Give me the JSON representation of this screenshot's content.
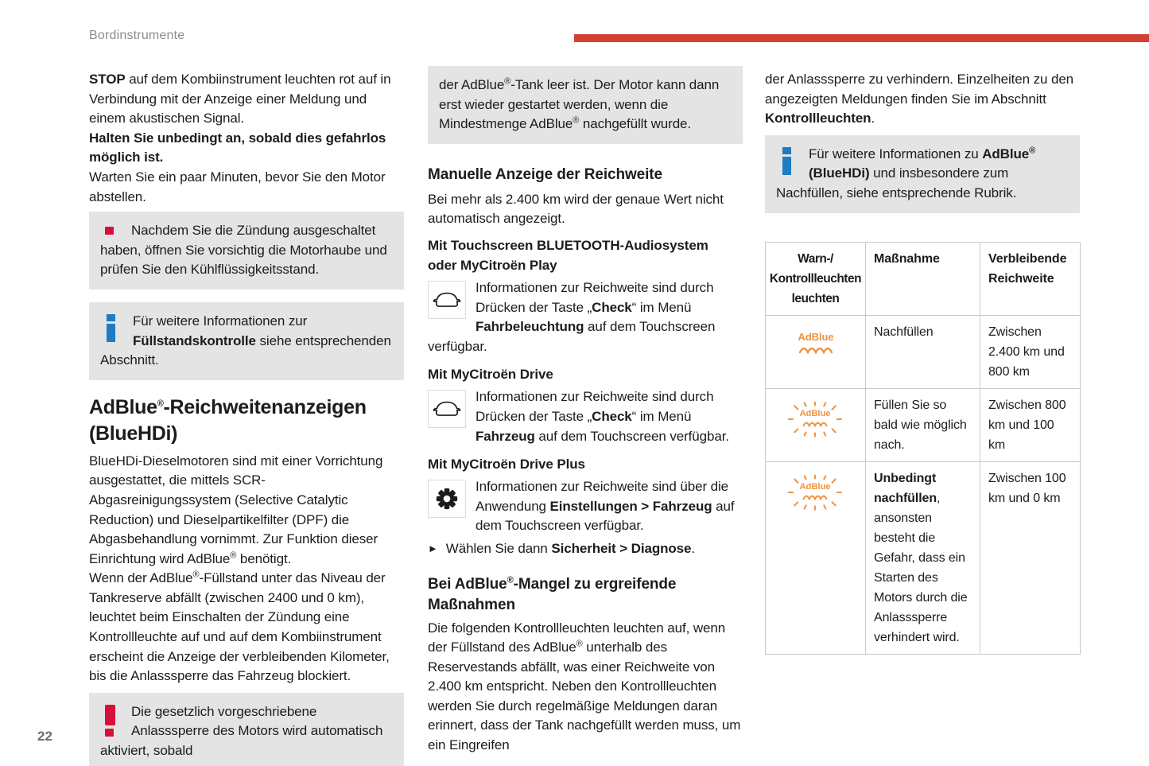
{
  "page": {
    "header_title": "Bordinstrumente",
    "page_number": "22",
    "accent_bar_color": "#d24033",
    "warning_red": "#d6103c",
    "info_blue": "#1d7cc4",
    "adblue_orange": "#ef9440",
    "graybox_color": "#e4e4e4"
  },
  "icons": {
    "warning_icon": "exclamation-mark",
    "info_icon": "i",
    "car_icon": "car-front-outline",
    "gear_icon": "gear",
    "bullet_icon": "►",
    "adblue_steady_icon": "AdBlue with wave",
    "adblue_blinking_icon": "AdBlue with wave and rays"
  },
  "col1": {
    "p1": [
      {
        "t": "STOP",
        "b": true
      },
      {
        "t": " auf dem Kombiinstrument leuchten rot auf in Verbindung mit der Anzeige einer Meldung und einem akustischen Signal."
      }
    ],
    "p2": [
      {
        "t": "Halten Sie unbedingt an, sobald dies gefahrlos möglich ist.",
        "b": true
      }
    ],
    "p3": [
      {
        "t": "Warten Sie ein paar Minuten, bevor Sie den Motor abstellen."
      }
    ],
    "warn1": [
      {
        "t": "Nachdem Sie die Zündung ausgeschaltet haben, öffnen Sie vorsichtig die Motorhaube und prüfen Sie den Kühlflüssigkeitsstand."
      }
    ],
    "info1": [
      {
        "t": "Für weitere Informationen zur "
      },
      {
        "t": "Füllstandskontrolle",
        "b": true
      },
      {
        "t": " siehe entsprechenden Abschnitt."
      }
    ],
    "h1": [
      {
        "t": "AdBlue"
      },
      {
        "t": "®",
        "sup": true
      },
      {
        "t": "-Reichweitenanzeigen"
      },
      {
        "br": true
      },
      {
        "t": "(BlueHDi)"
      }
    ],
    "p4": [
      {
        "t": "BlueHDi-Dieselmotoren sind mit einer Vorrichtung ausgestattet, die mittels SCR-Abgasreinigungssystem (Selective Catalytic Reduction) und Dieselpartikelfilter (DPF) die Abgasbehandlung vornimmt. Zur Funktion dieser Einrichtung wird AdBlue"
      },
      {
        "t": "®",
        "sup": true
      },
      {
        "t": " benötigt."
      }
    ],
    "p5": [
      {
        "t": "Wenn der AdBlue"
      },
      {
        "t": "®",
        "sup": true
      },
      {
        "t": "-Füllstand unter das Niveau der Tankreserve abfällt (zwischen 2400 und 0 km), leuchtet beim Einschalten der Zündung eine Kontrollleuchte auf und auf dem Kombiinstrument erscheint die Anzeige der verbleibenden Kilometer, bis die Anlasssperre das Fahrzeug blockiert."
      }
    ],
    "warn2": [
      {
        "t": "Die gesetzlich vorgeschriebene Anlasssperre des Motors wird automatisch aktiviert, sobald"
      }
    ]
  },
  "col2": {
    "cont_box": [
      {
        "t": "der AdBlue"
      },
      {
        "t": "®",
        "sup": true
      },
      {
        "t": "-Tank leer ist. Der Motor kann dann erst wieder gestartet werden, wenn die Mindestmenge AdBlue"
      },
      {
        "t": "®",
        "sup": true
      },
      {
        "t": " nachgefüllt wurde."
      }
    ],
    "h2a": [
      {
        "t": "Manuelle Anzeige der Reichweite"
      }
    ],
    "p1": [
      {
        "t": "Bei mehr als 2.400 km wird der genaue Wert nicht automatisch angezeigt."
      }
    ],
    "h3a": [
      {
        "t": "Mit Touchscreen BLUETOOTH-Audiosystem"
      },
      {
        "br": true
      },
      {
        "t": "oder MyCitroën Play"
      }
    ],
    "car1": [
      {
        "t": "Informationen zur Reichweite sind durch Drücken der Taste „"
      },
      {
        "t": "Check",
        "b": true
      },
      {
        "t": "“ im Menü "
      },
      {
        "t": "Fahrbeleuchtung",
        "b": true
      },
      {
        "t": " auf dem Touchscreen verfügbar."
      }
    ],
    "h3b": [
      {
        "t": "Mit MyCitroën Drive"
      }
    ],
    "car2": [
      {
        "t": "Informationen zur Reichweite sind durch Drücken der Taste „"
      },
      {
        "t": "Check",
        "b": true
      },
      {
        "t": "“ im Menü "
      },
      {
        "t": "Fahrzeug",
        "b": true
      },
      {
        "t": " auf dem Touchscreen verfügbar."
      }
    ],
    "h3c": [
      {
        "t": "Mit MyCitroën Drive Plus"
      }
    ],
    "gear1": [
      {
        "t": "Informationen zur Reichweite sind über die Anwendung "
      },
      {
        "t": "Einstellungen > Fahrzeug",
        "b": true
      },
      {
        "t": " auf dem Touchscreen verfügbar."
      }
    ],
    "bullet_icon": "►",
    "bullet": [
      {
        "t": "Wählen Sie dann "
      },
      {
        "t": "Sicherheit > Diagnose",
        "b": true
      },
      {
        "t": "."
      }
    ],
    "h2b": [
      {
        "t": "Bei AdBlue"
      },
      {
        "t": "®",
        "sup": true
      },
      {
        "t": "-Mangel zu ergreifende"
      },
      {
        "br": true
      },
      {
        "t": "Maßnahmen"
      }
    ],
    "p2": [
      {
        "t": "Die folgenden Kontrollleuchten leuchten auf, wenn der Füllstand des AdBlue"
      },
      {
        "t": "®",
        "sup": true
      },
      {
        "t": " unterhalb des Reservestands abfällt, was einer Reichweite von 2.400 km entspricht. Neben den Kontrollleuchten werden Sie durch regelmäßige Meldungen daran erinnert, dass der Tank nachgefüllt werden muss, um ein Eingreifen"
      }
    ]
  },
  "col3": {
    "p1": [
      {
        "t": "der Anlasssperre zu verhindern. Einzelheiten zu den angezeigten Meldungen finden Sie im Abschnitt "
      },
      {
        "t": "Kontrollleuchten",
        "b": true
      },
      {
        "t": "."
      }
    ],
    "info1": [
      {
        "t": "Für weitere Informationen zu "
      },
      {
        "t": "AdBlue",
        "b": true
      },
      {
        "t": "®",
        "b": true,
        "sup": true
      },
      {
        "t": " (BlueHDi)",
        "b": true
      },
      {
        "t": " und insbesondere zum Nachfüllen, siehe entsprechende Rubrik."
      }
    ],
    "table": {
      "headers": [
        "Warn-/ Kontrollleuchten leuchten",
        "Maßnahme",
        "Verbleibende Reichweite"
      ],
      "rows": [
        {
          "icon": "adblue-steady-warning-icon",
          "icon_label": "AdBlue",
          "action": [
            {
              "t": "Nachfüllen"
            }
          ],
          "range": "Zwischen 2.400 km und 800 km"
        },
        {
          "icon": "adblue-blinking-warning-icon",
          "icon_label": "AdBlue",
          "action": [
            {
              "t": "Füllen Sie so bald wie möglich nach."
            }
          ],
          "range": "Zwischen 800 km und 100 km"
        },
        {
          "icon": "adblue-blinking-warning-icon",
          "icon_label": "AdBlue",
          "action": [
            {
              "t": "Unbedingt nachfüllen",
              "b": true
            },
            {
              "t": ", ansonsten besteht die Gefahr, dass ein Starten des Motors durch die Anlasssperre verhindert wird."
            }
          ],
          "range": "Zwischen 100 km und 0 km"
        }
      ]
    }
  }
}
